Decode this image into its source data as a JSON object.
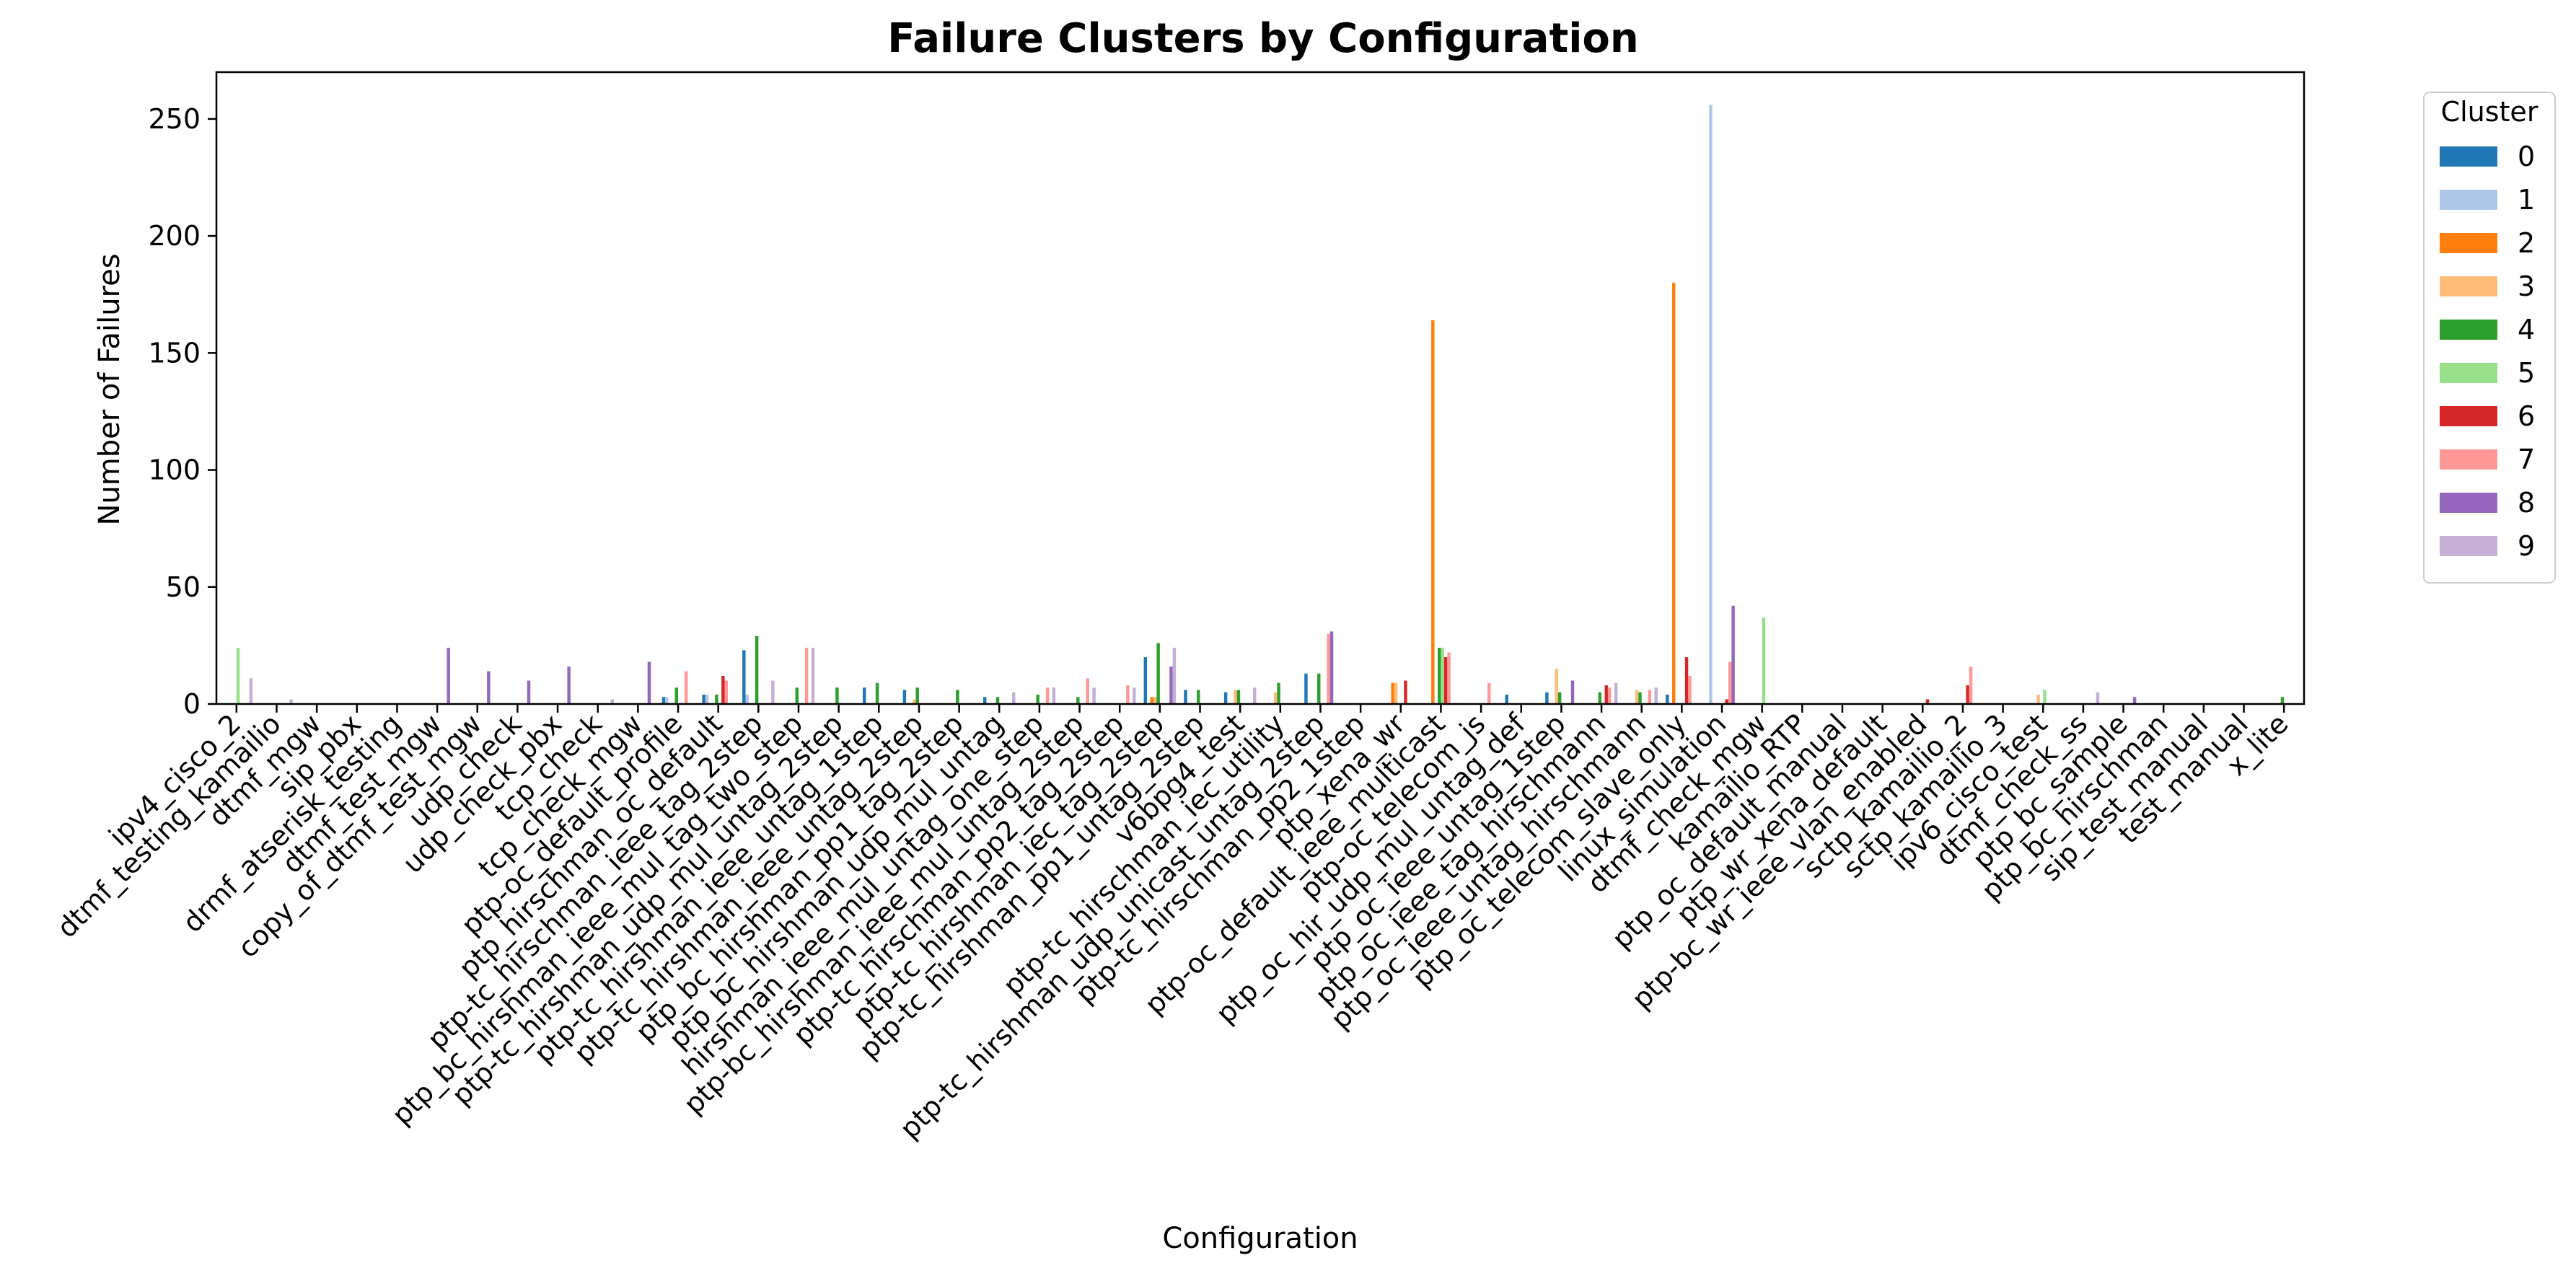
{
  "chart_data": {
    "type": "bar",
    "title": "Failure Clusters by Configuration",
    "xlabel": "Configuration",
    "ylabel": "Number of Failures",
    "ylim": [
      0,
      270
    ],
    "yticks": [
      0,
      50,
      100,
      150,
      200,
      250
    ],
    "grid": false,
    "legend": {
      "title": "Cluster",
      "placement": "outside-top-right"
    },
    "categories": [
      "ipv4_cisco_2",
      "dtmf_testing_kamailio",
      "dtmf_mgw",
      "sip_pbx",
      "drmf_atserisk_testing",
      "dtmf_test_mgw",
      "copy_of_dtmf_test_mgw",
      "udp_check",
      "udp_check_pbx",
      "tcp_check",
      "tcp_check_mgw",
      "ptp-oc_default_profile",
      "ptp_hirschman_oc_default",
      "ptp-tc_hirschman_ieee_tag_2step",
      "ptp_bc_hirshman_ieee_mul_tag_two_step",
      "ptp-tc_hirshman_udp_mul_untag_2step",
      "ptp-tc_hirshman_ieee_untag_1step",
      "ptp-tc_hirshman_ieee_untag_2step",
      "ptp_bc_hirshman_pp1_tag_2step",
      "ptp_bc_hirshman_udp_mul_untag",
      "hirshman_ieee_mul_untag_one_step",
      "ptp-bc_hirshman_ieee_mul_untag_2step",
      "ptp-tc_hirschman_pp2_tag_2step",
      "ptp-tc_hirshman_iec_tag_2step",
      "ptp-tc_hirshman_pp1_untag_2step",
      "v6bpg4_test",
      "ptp-tc_hirschman_iec_utility",
      "ptp-tc_hirshman_udp_unicast_untag_2step",
      "ptp-tc_hirschman_pp2_1step",
      "ptp_xena_wr",
      "ptp-oc_default_ieee_multicast",
      "ptp-oc_telecom_js",
      "ptp_oc_hir_udp_mul_untag_def",
      "ptp_oc_ieee_untag_1step",
      "ptp_oc_ieee_tag_hirschmann",
      "ptp_oc_ieee_untag_hirschmann",
      "ptp_oc_telecom_slave_only",
      "linux_simulation",
      "dtmf_check_mgw",
      "kamailio_RTP",
      "ptp_oc_default_manual",
      "ptp_wr_xena_default",
      "ptp-bc_wr_ieee_vlan_enabled",
      "sctp_kamailio_2",
      "sctp_kamailio_3",
      "ipv6_cisco_test",
      "dtmf_check_ss",
      "ptp_bc_sample",
      "ptp_bc_hirschman",
      "sip_test_manual",
      "test_manual",
      "x_lite"
    ],
    "series": [
      {
        "name": "0",
        "color": "#1f77b4",
        "values": [
          0,
          0,
          0,
          0,
          0,
          0,
          0,
          0,
          0,
          0,
          0,
          3,
          4,
          23,
          0,
          0,
          7,
          6,
          0,
          3,
          0,
          0,
          0,
          20,
          6,
          5,
          0,
          13,
          0,
          0,
          0,
          0,
          4,
          5,
          0,
          0,
          4,
          0,
          0,
          0,
          0,
          0,
          0,
          0,
          0,
          0,
          0,
          0,
          0,
          0,
          0,
          0
        ]
      },
      {
        "name": "1",
        "color": "#aec7e8",
        "values": [
          0,
          0,
          0,
          0,
          0,
          0,
          0,
          0,
          0,
          0,
          0,
          3,
          4,
          4,
          0,
          0,
          0,
          0,
          0,
          0,
          0,
          0,
          0,
          0,
          0,
          0,
          0,
          0,
          0,
          0,
          0,
          0,
          0,
          0,
          0,
          0,
          0,
          256,
          0,
          0,
          0,
          0,
          0,
          0,
          0,
          0,
          0,
          0,
          0,
          0,
          0,
          0
        ]
      },
      {
        "name": "2",
        "color": "#ff7f0e",
        "values": [
          0,
          0,
          0,
          0,
          0,
          0,
          0,
          0,
          0,
          0,
          0,
          0,
          0,
          0,
          0,
          0,
          0,
          0,
          0,
          0,
          0,
          0,
          0,
          3,
          0,
          0,
          0,
          0,
          0,
          9,
          164,
          0,
          0,
          0,
          0,
          0,
          180,
          0,
          0,
          0,
          0,
          0,
          0,
          0,
          0,
          0,
          0,
          0,
          0,
          0,
          0,
          0
        ]
      },
      {
        "name": "3",
        "color": "#ffbb78",
        "values": [
          0,
          0,
          0,
          0,
          0,
          0,
          0,
          0,
          0,
          0,
          0,
          0,
          0,
          0,
          0,
          0,
          0,
          2,
          0,
          0,
          0,
          0,
          0,
          3,
          0,
          6,
          5,
          0,
          0,
          9,
          0,
          0,
          0,
          15,
          0,
          6,
          0,
          0,
          0,
          0,
          0,
          0,
          0,
          0,
          0,
          4,
          0,
          0,
          0,
          0,
          0,
          0
        ]
      },
      {
        "name": "4",
        "color": "#2ca02c",
        "values": [
          0,
          0,
          0,
          0,
          0,
          0,
          0,
          0,
          0,
          0,
          0,
          7,
          4,
          29,
          7,
          7,
          9,
          7,
          6,
          3,
          4,
          3,
          0,
          26,
          6,
          6,
          9,
          13,
          0,
          0,
          24,
          0,
          0,
          5,
          5,
          5,
          0,
          0,
          0,
          0,
          0,
          0,
          0,
          0,
          0,
          0,
          0,
          0,
          0,
          0,
          0,
          3
        ]
      },
      {
        "name": "5",
        "color": "#98df8a",
        "values": [
          24,
          0,
          0,
          0,
          0,
          0,
          0,
          0,
          0,
          0,
          0,
          0,
          0,
          0,
          0,
          0,
          0,
          0,
          0,
          0,
          0,
          0,
          0,
          0,
          0,
          0,
          0,
          0,
          0,
          0,
          24,
          0,
          0,
          0,
          0,
          0,
          0,
          0,
          37,
          0,
          0,
          0,
          0,
          0,
          0,
          6,
          0,
          0,
          0,
          0,
          0,
          0
        ]
      },
      {
        "name": "6",
        "color": "#d62728",
        "values": [
          0,
          0,
          0,
          0,
          0,
          0,
          0,
          0,
          0,
          0,
          0,
          0,
          12,
          0,
          0,
          0,
          0,
          0,
          0,
          0,
          0,
          0,
          0,
          0,
          0,
          0,
          0,
          0,
          0,
          10,
          20,
          0,
          0,
          0,
          8,
          0,
          20,
          2,
          0,
          0,
          0,
          0,
          2,
          8,
          0,
          0,
          0,
          0,
          0,
          0,
          0,
          0
        ]
      },
      {
        "name": "7",
        "color": "#ff9896",
        "values": [
          0,
          0,
          0,
          0,
          0,
          0,
          0,
          0,
          0,
          0,
          0,
          14,
          10,
          0,
          24,
          0,
          0,
          0,
          0,
          0,
          7,
          11,
          8,
          0,
          0,
          0,
          0,
          30,
          0,
          0,
          22,
          9,
          0,
          0,
          7,
          6,
          12,
          18,
          0,
          0,
          0,
          0,
          0,
          16,
          0,
          0,
          0,
          0,
          0,
          0,
          0,
          0
        ]
      },
      {
        "name": "8",
        "color": "#9467bd",
        "values": [
          0,
          0,
          0,
          0,
          0,
          24,
          14,
          10,
          16,
          0,
          18,
          0,
          0,
          0,
          0,
          0,
          0,
          0,
          0,
          0,
          0,
          0,
          0,
          16,
          0,
          0,
          0,
          31,
          0,
          0,
          0,
          0,
          0,
          10,
          0,
          0,
          0,
          42,
          0,
          0,
          0,
          0,
          0,
          0,
          0,
          0,
          0,
          3,
          0,
          0,
          0,
          0
        ]
      },
      {
        "name": "9",
        "color": "#c5b0d5",
        "values": [
          11,
          2,
          0,
          0,
          0,
          0,
          0,
          0,
          0,
          2,
          0,
          0,
          0,
          10,
          24,
          0,
          0,
          0,
          0,
          5,
          7,
          7,
          7,
          24,
          0,
          7,
          0,
          0,
          0,
          0,
          0,
          0,
          0,
          0,
          9,
          7,
          0,
          0,
          0,
          0,
          0,
          0,
          0,
          0,
          0,
          0,
          5,
          0,
          0,
          0,
          0,
          0
        ]
      }
    ]
  }
}
